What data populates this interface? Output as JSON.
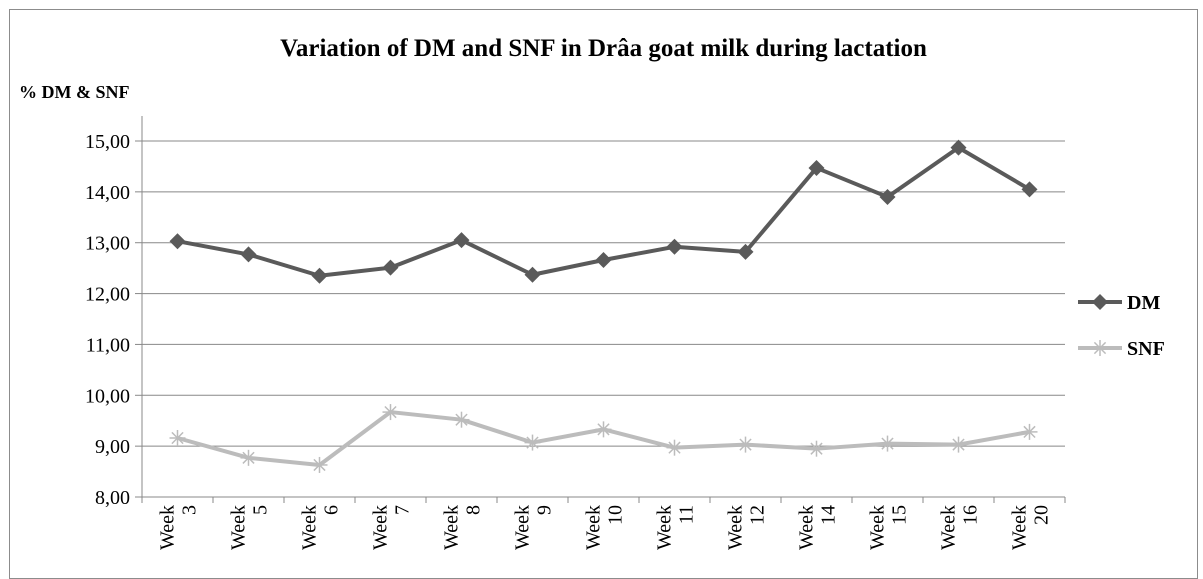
{
  "chart_data": {
    "type": "line",
    "title": "Variation of DM and SNF in Drâa goat milk during lactation",
    "ylabel": "% DM & SNF",
    "xlabel": "",
    "ylim": [
      8,
      15
    ],
    "ytick_labels": [
      "8,00",
      "9,00",
      "10,00",
      "11,00",
      "12,00",
      "13,00",
      "14,00",
      "15,00"
    ],
    "categories": [
      [
        "Week",
        "3"
      ],
      [
        "Week",
        "5"
      ],
      [
        "Week",
        "6"
      ],
      [
        "Week",
        "7"
      ],
      [
        "Week",
        "8"
      ],
      [
        "Week",
        "9"
      ],
      [
        "Week",
        "10"
      ],
      [
        "Week",
        "11"
      ],
      [
        "Week",
        "12"
      ],
      [
        "Week",
        "14"
      ],
      [
        "Week",
        "15"
      ],
      [
        "Week",
        "16"
      ],
      [
        "Week",
        "20"
      ]
    ],
    "series": [
      {
        "name": "DM",
        "color": "#5a5a5a",
        "marker": "diamond",
        "values": [
          13.03,
          12.77,
          12.35,
          12.51,
          13.05,
          12.37,
          12.66,
          12.92,
          12.82,
          14.47,
          13.9,
          14.87,
          14.05
        ]
      },
      {
        "name": "SNF",
        "color": "#bcbcbc",
        "marker": "asterisk",
        "values": [
          9.16,
          8.77,
          8.63,
          9.67,
          9.52,
          9.07,
          9.33,
          8.97,
          9.03,
          8.95,
          9.05,
          9.03,
          9.28
        ]
      }
    ],
    "grid": true,
    "legend_position": "right"
  }
}
